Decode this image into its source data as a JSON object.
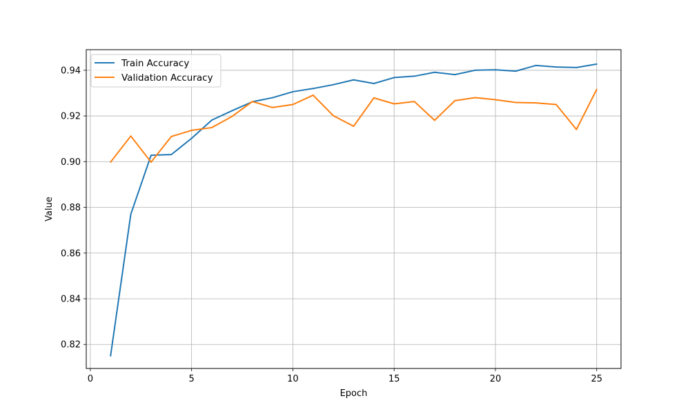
{
  "chart_data": {
    "type": "line",
    "title": "",
    "xlabel": "Epoch",
    "ylabel": "Value",
    "xlim": [
      -0.2,
      26.2
    ],
    "ylim": [
      0.8095,
      0.949
    ],
    "x_ticks": [
      0,
      5,
      10,
      15,
      20,
      25
    ],
    "x_tick_labels": [
      "0",
      "5",
      "10",
      "15",
      "20",
      "25"
    ],
    "y_ticks": [
      0.82,
      0.84,
      0.86,
      0.88,
      0.9,
      0.92,
      0.94
    ],
    "y_tick_labels": [
      "0.82",
      "0.84",
      "0.86",
      "0.88",
      "0.90",
      "0.92",
      "0.94"
    ],
    "grid": true,
    "legend_position": "top-left",
    "x": [
      1,
      2,
      3,
      4,
      5,
      6,
      7,
      8,
      9,
      10,
      11,
      12,
      13,
      14,
      15,
      16,
      17,
      18,
      19,
      20,
      21,
      22,
      23,
      24,
      25
    ],
    "series": [
      {
        "name": "Train Accuracy",
        "color": "#1f77b4",
        "values": [
          0.815,
          0.877,
          0.9028,
          0.9031,
          0.9102,
          0.9182,
          0.9223,
          0.9262,
          0.928,
          0.9306,
          0.932,
          0.9337,
          0.9358,
          0.9342,
          0.9368,
          0.9374,
          0.9391,
          0.9381,
          0.94,
          0.9402,
          0.9396,
          0.9421,
          0.9414,
          0.9412,
          0.9427
        ]
      },
      {
        "name": "Validation Accuracy",
        "color": "#ff7f0e",
        "values": [
          0.8998,
          0.9112,
          0.8998,
          0.911,
          0.9137,
          0.9149,
          0.9198,
          0.9263,
          0.9237,
          0.925,
          0.9291,
          0.9201,
          0.9155,
          0.9279,
          0.9253,
          0.9263,
          0.9181,
          0.9267,
          0.928,
          0.9271,
          0.9259,
          0.9257,
          0.925,
          0.9141,
          0.9316
        ]
      }
    ]
  }
}
